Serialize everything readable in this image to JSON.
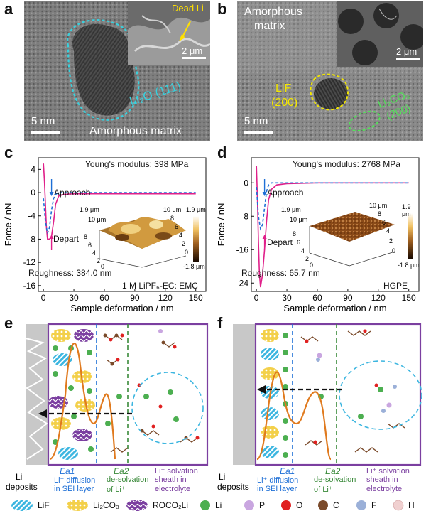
{
  "panels": {
    "a": {
      "label": "a",
      "inset_text": "Dead Li",
      "inset_scale": "2 μm",
      "region_label": "Li₂O (111)",
      "scale": "5 nm",
      "matrix_label": "Amorphous matrix"
    },
    "b": {
      "label": "b",
      "matrix_label_1": "Amorphous",
      "matrix_label_2": "matrix",
      "inset_scale": "2 μm",
      "lif_label_1": "LiF",
      "lif_label_2": "(200)",
      "li2co3_label_1": "Li₂CO₃",
      "li2co3_label_2": "(200)",
      "scale": "5 nm"
    },
    "c": {
      "label": "c",
      "modulus": "Young's modulus: 398 MPa",
      "approach": "Approach",
      "depart": "Depart",
      "roughness": "Roughness: 384.0 nm",
      "electrolyte": "1 M LiPF₆-EC: EMC",
      "cbar_top": "1.9 μm",
      "cbar_bottom": "-1.8 μm",
      "surf_ticks_left": [
        "1.9 μm",
        "10 μm",
        "8",
        "6",
        "4",
        "2",
        "0"
      ],
      "surf_ticks_right": [
        "10 μm",
        "8",
        "6",
        "4",
        "2",
        "0"
      ]
    },
    "d": {
      "label": "d",
      "modulus": "Young's modulus: 2768 MPa",
      "approach": "Approach",
      "depart": "Depart",
      "roughness": "Roughness: 65.7 nm",
      "electrolyte": "HGPE",
      "cbar_top": "1.9 μm",
      "cbar_bottom": "-1.8 μm",
      "surf_ticks_left": [
        "1.9 μm",
        "10 μm",
        "8",
        "6",
        "4",
        "2",
        "0"
      ],
      "surf_ticks_right": [
        "10 μm",
        "8",
        "6",
        "4",
        "2",
        "0"
      ]
    },
    "e": {
      "label": "e",
      "li_deposits_1": "Li",
      "li_deposits_2": "deposits",
      "ea1": "Ea1",
      "ea1_desc_1": "Li⁺ diffusion",
      "ea1_desc_2": "in SEI layer",
      "ea2": "Ea2",
      "ea2_desc_1": "de-solvation",
      "ea2_desc_2": "of Li⁺",
      "sheath_1": "Li⁺ solvation",
      "sheath_2": "sheath in",
      "sheath_3": "electrolyte"
    },
    "f": {
      "label": "f",
      "li_deposits_1": "Li",
      "li_deposits_2": "deposits",
      "ea1": "Ea1",
      "ea1_desc_1": "Li⁺ diffusion",
      "ea1_desc_2": "in SEI layer",
      "ea2": "Ea2",
      "ea2_desc_1": "de-solvation",
      "ea2_desc_2": "of Li⁺",
      "sheath_1": "Li⁺ solvation",
      "sheath_2": "sheath in",
      "sheath_3": "electrolyte"
    }
  },
  "legend": [
    {
      "name": "LiF",
      "color": "#3db6e0",
      "kind": "hatch"
    },
    {
      "name": "Li₂CO₃",
      "color": "#f3d04a",
      "kind": "dots"
    },
    {
      "name": "ROCO₂Li",
      "color": "#7b3fa0",
      "kind": "wave"
    },
    {
      "name": "Li",
      "color": "#4caf50",
      "kind": "ball"
    },
    {
      "name": "P",
      "color": "#c9a6e0",
      "kind": "ball"
    },
    {
      "name": "O",
      "color": "#e02020",
      "kind": "ball"
    },
    {
      "name": "C",
      "color": "#7a4a2a",
      "kind": "ball"
    },
    {
      "name": "F",
      "color": "#9bb0d8",
      "kind": "ball"
    },
    {
      "name": "H",
      "color": "#f0d0d0",
      "kind": "ball"
    }
  ],
  "chart_data": [
    {
      "type": "line",
      "panel": "c",
      "xlabel": "Sample deformation / nm",
      "ylabel": "Force / nN",
      "xlim": [
        -5,
        160
      ],
      "ylim": [
        -17,
        6
      ],
      "xticks": [
        0,
        30,
        60,
        90,
        120,
        150
      ],
      "yticks": [
        4,
        0,
        -4,
        -8,
        -12,
        -16
      ],
      "series": [
        {
          "name": "Approach",
          "color": "#1e6fd6",
          "dashed": true,
          "x": [
            0,
            2,
            4,
            6,
            8,
            10,
            12,
            15,
            20,
            30,
            60,
            90,
            120,
            150
          ],
          "y": [
            -1,
            -5,
            -7,
            -6,
            -3,
            -1,
            -0.3,
            0,
            0,
            0,
            0,
            0,
            0,
            0
          ]
        },
        {
          "name": "Depart",
          "color": "#e0208a",
          "dashed": false,
          "x": [
            0,
            1,
            2,
            3,
            4,
            6,
            8,
            10,
            12,
            15,
            20,
            30,
            60,
            90,
            120,
            150
          ],
          "y": [
            5,
            2,
            -2,
            -6,
            -8,
            -8,
            -7.5,
            -5,
            -2,
            -0.6,
            -0.3,
            -0.2,
            -0.2,
            -0.2,
            -0.2,
            -0.2
          ]
        }
      ]
    },
    {
      "type": "line",
      "panel": "d",
      "xlabel": "Sample deformation / nm",
      "ylabel": "Force / nN",
      "xlim": [
        -5,
        160
      ],
      "ylim": [
        -26,
        6
      ],
      "xticks": [
        0,
        30,
        60,
        90,
        120,
        150
      ],
      "yticks": [
        0,
        -8,
        -16,
        -24
      ],
      "series": [
        {
          "name": "Approach",
          "color": "#1e6fd6",
          "dashed": true,
          "x": [
            0,
            2,
            4,
            6,
            8,
            10,
            12,
            15,
            20,
            30,
            60,
            90,
            120,
            150
          ],
          "y": [
            -1,
            -8,
            -11,
            -10,
            -6,
            -2,
            -0.5,
            0,
            0,
            0,
            0,
            0,
            0,
            0
          ]
        },
        {
          "name": "Depart",
          "color": "#e0208a",
          "dashed": false,
          "x": [
            0,
            1,
            2,
            3,
            4,
            6,
            8,
            10,
            12,
            15,
            20,
            30,
            60,
            90,
            120,
            150
          ],
          "y": [
            4,
            -4,
            -14,
            -22,
            -25,
            -22,
            -16,
            -9,
            -4,
            -1.5,
            -0.5,
            -0.2,
            0,
            0,
            0,
            0
          ]
        }
      ]
    }
  ]
}
